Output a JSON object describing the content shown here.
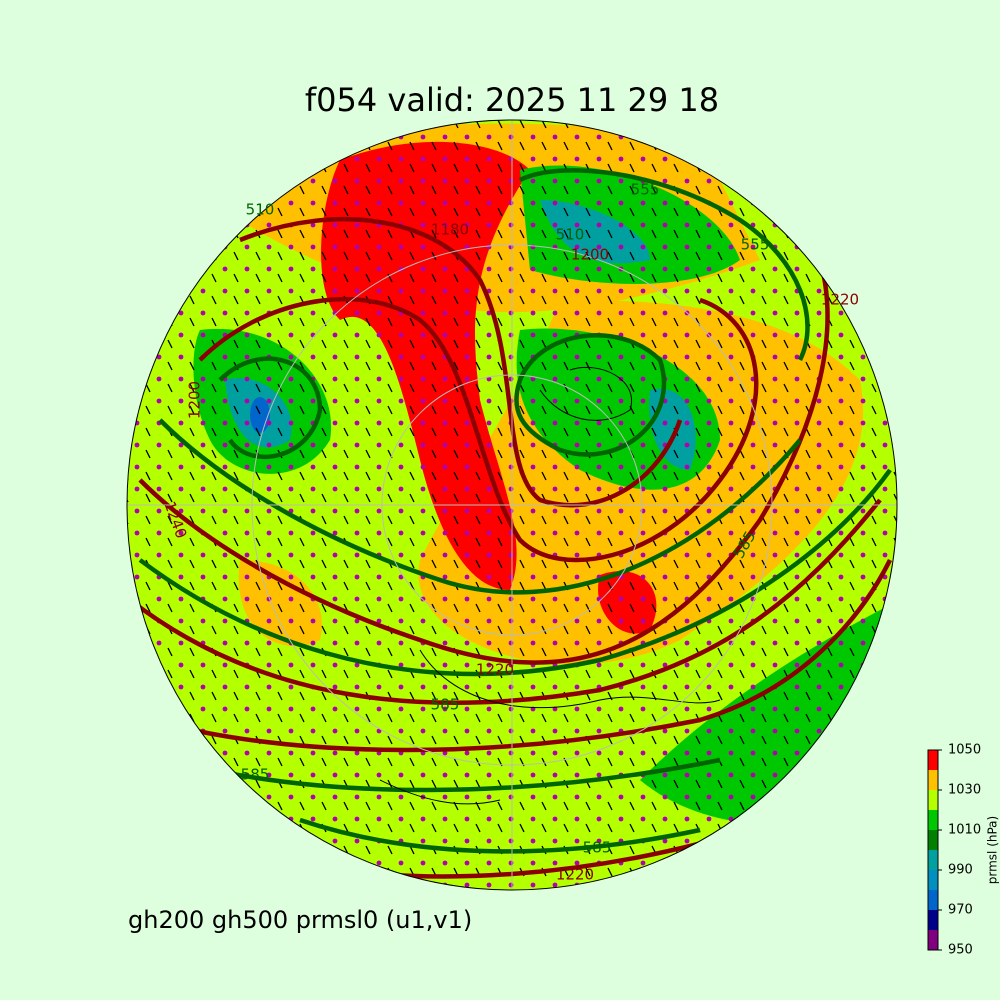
{
  "title": "f054 valid:   2025 11 29 18",
  "caption": "gh200 gh500 prmsl0 (u1,v1)",
  "colorbar": {
    "label": "prmsl (hPa)",
    "lim": [
      950,
      1050
    ],
    "ticks": [
      950,
      970,
      990,
      1010,
      1030,
      1050
    ],
    "levels": [
      950,
      960,
      970,
      980,
      990,
      1000,
      1010,
      1020,
      1030,
      1040,
      1050
    ],
    "colors": [
      "#800080",
      "#00008b",
      "#0066cc",
      "#008fbf",
      "#00a0a0",
      "#008000",
      "#00c800",
      "#b4ff00",
      "#ffc000",
      "#ff0000"
    ]
  },
  "contour_labels": [
    "1220",
    "585",
    "1220",
    "585",
    "1200",
    "510",
    "555",
    "1220",
    "1200",
    "1240",
    "555",
    "585",
    "1180",
    "510",
    "585"
  ]
}
